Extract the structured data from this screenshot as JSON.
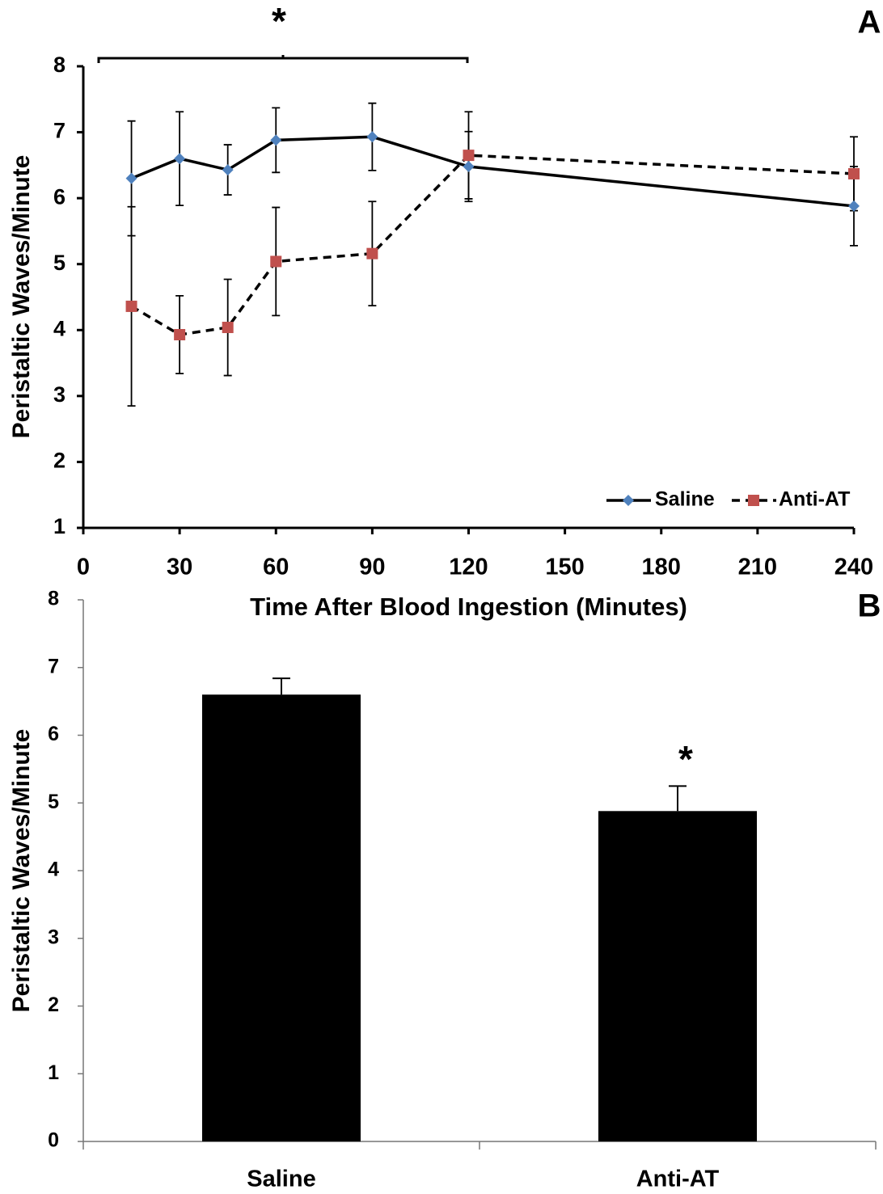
{
  "chart_data": [
    {
      "type": "line",
      "panel_label": "A",
      "annotation": "*",
      "x_label": "Time After Blood Ingestion (Minutes)",
      "y_label": "Peristaltic Waves/Minute",
      "x": [
        15,
        30,
        45,
        60,
        90,
        120,
        240
      ],
      "xlim": [
        0,
        240
      ],
      "xticks": [
        0,
        30,
        60,
        90,
        120,
        150,
        180,
        210,
        240
      ],
      "ylim": [
        1,
        8
      ],
      "yticks": [
        1,
        2,
        3,
        4,
        5,
        6,
        7,
        8
      ],
      "grid": false,
      "legend": "lower right",
      "series": [
        {
          "name": "Saline",
          "color": "#4f81bd",
          "line_color": "#000000",
          "dashed": false,
          "marker": "diamond",
          "values": [
            6.3,
            6.6,
            6.43,
            6.88,
            6.93,
            6.48,
            5.88
          ],
          "errors": [
            0.87,
            0.71,
            0.38,
            0.49,
            0.51,
            0.53,
            0.6
          ]
        },
        {
          "name": "Anti-AT",
          "color": "#c0504d",
          "line_color": "#000000",
          "dashed": true,
          "marker": "square",
          "values": [
            4.36,
            3.93,
            4.04,
            5.04,
            5.16,
            6.65,
            6.37
          ],
          "errors": [
            1.51,
            0.59,
            0.73,
            0.82,
            0.79,
            0.66,
            0.56
          ]
        }
      ]
    },
    {
      "type": "bar",
      "panel_label": "B",
      "annotation": "*",
      "y_label": "Peristaltic Waves/Minute",
      "categories": [
        "Saline",
        "Anti-AT"
      ],
      "values": [
        6.6,
        4.88
      ],
      "errors": [
        0.24,
        0.37
      ],
      "color": "#000000",
      "ylim": [
        0,
        8
      ],
      "yticks": [
        0,
        1,
        2,
        3,
        4,
        5,
        6,
        7,
        8
      ],
      "grid": false
    }
  ]
}
